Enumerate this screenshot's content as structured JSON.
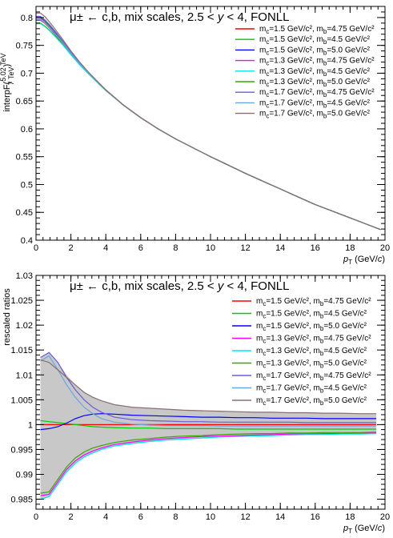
{
  "chart_data": [
    {
      "type": "line",
      "title": "μ± ← c,b, mix scales, 2.5 < y < 4, FONLL",
      "xlabel": "pT (GeV/c)",
      "ylabel": "interpF(5.02 TeV / 7 TeV)",
      "xlim": [
        0,
        20
      ],
      "ylim": [
        0.4,
        0.82
      ],
      "x_ticks": [
        "0",
        "2",
        "4",
        "6",
        "8",
        "10",
        "12",
        "14",
        "16",
        "18",
        "20"
      ],
      "y_ticks": [
        "0.4",
        "0.45",
        "0.5",
        "0.55",
        "0.6",
        "0.65",
        "0.7",
        "0.75",
        "0.8"
      ],
      "legend_position": "top-right",
      "x": [
        0,
        0.25,
        0.5,
        0.75,
        1,
        1.5,
        2,
        2.5,
        3,
        3.5,
        4,
        5,
        6,
        7,
        8,
        9,
        10,
        11,
        12,
        13,
        14,
        15,
        16,
        17,
        18,
        19,
        19.75
      ],
      "series": [
        {
          "name": "mc=1.5 GeV/c², mb=4.75 GeV/c²",
          "color": "#ff0000",
          "values": [
            0.795,
            0.795,
            0.79,
            0.782,
            0.773,
            0.755,
            0.735,
            0.717,
            0.7,
            0.684,
            0.669,
            0.643,
            0.62,
            0.6,
            0.582,
            0.566,
            0.55,
            0.535,
            0.52,
            0.506,
            0.492,
            0.478,
            0.464,
            0.452,
            0.44,
            0.428,
            0.419
          ]
        },
        {
          "name": "mc=1.5 GeV/c², mb=4.5 GeV/c²",
          "color": "#00cc00",
          "values": [
            0.79,
            0.79,
            0.785,
            0.778,
            0.77,
            0.753,
            0.734,
            0.716,
            0.699,
            0.684,
            0.669,
            0.643,
            0.62,
            0.6,
            0.582,
            0.566,
            0.55,
            0.535,
            0.52,
            0.506,
            0.492,
            0.478,
            0.464,
            0.452,
            0.44,
            0.428,
            0.419
          ]
        },
        {
          "name": "mc=1.5 GeV/c², mb=5.0 GeV/c²",
          "color": "#0000ff",
          "values": [
            0.8,
            0.8,
            0.794,
            0.786,
            0.777,
            0.758,
            0.737,
            0.718,
            0.701,
            0.685,
            0.67,
            0.643,
            0.62,
            0.6,
            0.582,
            0.566,
            0.55,
            0.535,
            0.52,
            0.506,
            0.492,
            0.478,
            0.464,
            0.452,
            0.44,
            0.428,
            0.419
          ]
        },
        {
          "name": "mc=1.3 GeV/c², mb=4.75 GeV/c²",
          "color": "#ff00ff",
          "values": [
            0.797,
            0.797,
            0.791,
            0.783,
            0.774,
            0.756,
            0.736,
            0.717,
            0.7,
            0.685,
            0.67,
            0.643,
            0.62,
            0.6,
            0.582,
            0.566,
            0.55,
            0.535,
            0.52,
            0.506,
            0.492,
            0.478,
            0.464,
            0.452,
            0.44,
            0.428,
            0.419
          ]
        },
        {
          "name": "mc=1.3 GeV/c², mb=4.5 GeV/c²",
          "color": "#00e5e5",
          "values": [
            0.789,
            0.789,
            0.784,
            0.777,
            0.769,
            0.752,
            0.733,
            0.715,
            0.699,
            0.684,
            0.669,
            0.643,
            0.62,
            0.6,
            0.582,
            0.566,
            0.55,
            0.535,
            0.52,
            0.506,
            0.492,
            0.478,
            0.464,
            0.452,
            0.44,
            0.428,
            0.419
          ]
        },
        {
          "name": "mc=1.3 GeV/c², mb=5.0 GeV/c²",
          "color": "#33aa00",
          "values": [
            0.801,
            0.801,
            0.795,
            0.787,
            0.778,
            0.758,
            0.737,
            0.718,
            0.701,
            0.685,
            0.67,
            0.643,
            0.62,
            0.6,
            0.582,
            0.566,
            0.55,
            0.535,
            0.52,
            0.506,
            0.492,
            0.478,
            0.464,
            0.452,
            0.44,
            0.428,
            0.419
          ]
        },
        {
          "name": "mc=1.7 GeV/c², mb=4.75 GeV/c²",
          "color": "#6b5bdb",
          "values": [
            0.802,
            0.802,
            0.796,
            0.788,
            0.779,
            0.759,
            0.738,
            0.719,
            0.701,
            0.685,
            0.67,
            0.643,
            0.62,
            0.6,
            0.582,
            0.566,
            0.55,
            0.535,
            0.52,
            0.506,
            0.492,
            0.478,
            0.464,
            0.452,
            0.44,
            0.428,
            0.419
          ]
        },
        {
          "name": "mc=1.7 GeV/c², mb=4.5 GeV/c²",
          "color": "#6aa6e0",
          "values": [
            0.796,
            0.796,
            0.791,
            0.783,
            0.774,
            0.756,
            0.736,
            0.717,
            0.7,
            0.685,
            0.67,
            0.643,
            0.62,
            0.6,
            0.582,
            0.566,
            0.55,
            0.535,
            0.52,
            0.506,
            0.492,
            0.478,
            0.464,
            0.452,
            0.44,
            0.428,
            0.419
          ]
        },
        {
          "name": "mc=1.7 GeV/c², mb=5.0 GeV/c²",
          "color": "#8a6e6e",
          "values": [
            0.808,
            0.808,
            0.802,
            0.793,
            0.783,
            0.762,
            0.74,
            0.72,
            0.702,
            0.686,
            0.67,
            0.643,
            0.62,
            0.6,
            0.582,
            0.566,
            0.55,
            0.535,
            0.52,
            0.506,
            0.492,
            0.478,
            0.464,
            0.452,
            0.44,
            0.428,
            0.419
          ]
        }
      ]
    },
    {
      "type": "line",
      "title": "μ± ← c,b, mix scales, 2.5 < y < 4, FONLL",
      "xlabel": "pT (GeV/c)",
      "ylabel": "rescaled ratios",
      "xlim": [
        0,
        20
      ],
      "ylim": [
        0.983,
        1.03
      ],
      "x_ticks": [
        "0",
        "2",
        "4",
        "6",
        "8",
        "10",
        "12",
        "14",
        "16",
        "18",
        "20"
      ],
      "y_ticks": [
        "0.985",
        "0.99",
        "0.995",
        "1",
        "1.005",
        "1.01",
        "1.015",
        "1.02",
        "1.025",
        "1.03"
      ],
      "legend_position": "top-right",
      "band_color": "#c8c8c8",
      "x": [
        0.25,
        0.75,
        1.25,
        1.75,
        2.25,
        2.75,
        3.25,
        3.75,
        4.5,
        5.5,
        6.5,
        7.5,
        8.5,
        9.5,
        10.5,
        11.5,
        12.5,
        13.5,
        14.5,
        15.5,
        16.5,
        17.5,
        18.5,
        19.5
      ],
      "band_upper": [
        1.0135,
        1.0145,
        1.0125,
        1.01,
        1.008,
        1.0065,
        1.0055,
        1.0048,
        1.004,
        1.0035,
        1.0033,
        1.0031,
        1.0029,
        1.0028,
        1.0027,
        1.0026,
        1.0025,
        1.0025,
        1.0024,
        1.0024,
        1.0023,
        1.0023,
        1.0022,
        1.0022
      ],
      "band_lower": [
        0.985,
        0.9855,
        0.988,
        0.9905,
        0.9922,
        0.9935,
        0.9943,
        0.995,
        0.9957,
        0.9962,
        0.9966,
        0.9969,
        0.9971,
        0.9973,
        0.9975,
        0.9976,
        0.9977,
        0.9978,
        0.9979,
        0.998,
        0.998,
        0.9981,
        0.9981,
        0.9982
      ],
      "series": [
        {
          "name": "mc=1.5 GeV/c², mb=4.75 GeV/c²",
          "color": "#ff0000",
          "values": [
            1.0,
            1.0,
            1.0,
            1.0,
            1.0,
            1.0,
            1.0,
            1.0,
            1.0,
            1.0,
            1.0,
            1.0,
            1.0,
            1.0,
            1.0,
            1.0,
            1.0,
            1.0,
            1.0,
            1.0,
            1.0,
            1.0,
            1.0,
            1.0
          ]
        },
        {
          "name": "mc=1.5 GeV/c², mb=4.5 GeV/c²",
          "color": "#00cc00",
          "values": [
            1.0008,
            1.0006,
            1.0004,
            1.0002,
            1.0,
            0.9998,
            0.9996,
            0.9995,
            0.9994,
            0.9993,
            0.9993,
            0.9992,
            0.9992,
            0.9992,
            0.9992,
            0.9991,
            0.9991,
            0.9991,
            0.9991,
            0.9991,
            0.9991,
            0.9991,
            0.9991,
            0.9991
          ]
        },
        {
          "name": "mc=1.5 GeV/c², mb=5.0 GeV/c²",
          "color": "#0000ff",
          "values": [
            0.999,
            0.9992,
            0.9996,
            1.0003,
            1.0012,
            1.0018,
            1.0021,
            1.0022,
            1.0021,
            1.0019,
            1.0018,
            1.0017,
            1.0016,
            1.0015,
            1.0015,
            1.0014,
            1.0014,
            1.0013,
            1.0013,
            1.0013,
            1.0012,
            1.0012,
            1.0012,
            1.0012
          ]
        },
        {
          "name": "mc=1.3 GeV/c², mb=4.75 GeV/c²",
          "color": "#ff00ff",
          "values": [
            0.9857,
            0.986,
            0.9885,
            0.991,
            0.9927,
            0.9939,
            0.9947,
            0.9953,
            0.996,
            0.9965,
            0.9969,
            0.9972,
            0.9974,
            0.9976,
            0.9977,
            0.9978,
            0.9979,
            0.998,
            0.9981,
            0.9981,
            0.9982,
            0.9982,
            0.9983,
            0.9983
          ]
        },
        {
          "name": "mc=1.3 GeV/c², mb=4.5 GeV/c²",
          "color": "#00e5e5",
          "values": [
            0.985,
            0.9855,
            0.988,
            0.9905,
            0.9922,
            0.9935,
            0.9943,
            0.995,
            0.9957,
            0.9962,
            0.9966,
            0.9969,
            0.9971,
            0.9973,
            0.9975,
            0.9976,
            0.9977,
            0.9978,
            0.9979,
            0.998,
            0.998,
            0.9981,
            0.9981,
            0.9982
          ]
        },
        {
          "name": "mc=1.3 GeV/c², mb=5.0 GeV/c²",
          "color": "#33aa00",
          "values": [
            0.9862,
            0.9865,
            0.989,
            0.9915,
            0.9933,
            0.9945,
            0.9953,
            0.9958,
            0.9964,
            0.9969,
            0.9972,
            0.9975,
            0.9977,
            0.9978,
            0.998,
            0.9981,
            0.9982,
            0.9982,
            0.9983,
            0.9983,
            0.9984,
            0.9984,
            0.9984,
            0.9985
          ]
        },
        {
          "name": "mc=1.7 GeV/c², mb=4.75 GeV/c²",
          "color": "#6b5bdb",
          "values": [
            1.0135,
            1.0145,
            1.0125,
            1.0095,
            1.007,
            1.005,
            1.0035,
            1.0025,
            1.0015,
            1.001,
            1.0008,
            1.0007,
            1.0006,
            1.0006,
            1.0005,
            1.0005,
            1.0005,
            1.0005,
            1.0005,
            1.0004,
            1.0004,
            1.0004,
            1.0004,
            1.0004
          ]
        },
        {
          "name": "mc=1.7 GeV/c², mb=4.5 GeV/c²",
          "color": "#6aa6e0",
          "values": [
            1.0128,
            1.0138,
            1.011,
            1.008,
            1.0055,
            1.0035,
            1.0022,
            1.0012,
            1.0005,
            1.0001,
            0.9999,
            0.9998,
            0.9998,
            0.9998,
            0.9997,
            0.9997,
            0.9997,
            0.9997,
            0.9997,
            0.9997,
            0.9997,
            0.9997,
            0.9997,
            0.9997
          ]
        },
        {
          "name": "mc=1.7 GeV/c², mb=5.0 GeV/c²",
          "color": "#8a6e6e",
          "values": [
            1.013,
            1.0125,
            1.011,
            1.0095,
            1.008,
            1.0065,
            1.0055,
            1.0048,
            1.004,
            1.0035,
            1.0033,
            1.0031,
            1.0029,
            1.0028,
            1.0027,
            1.0026,
            1.0025,
            1.0025,
            1.0024,
            1.0024,
            1.0023,
            1.0023,
            1.0022,
            1.0022
          ]
        }
      ]
    }
  ]
}
